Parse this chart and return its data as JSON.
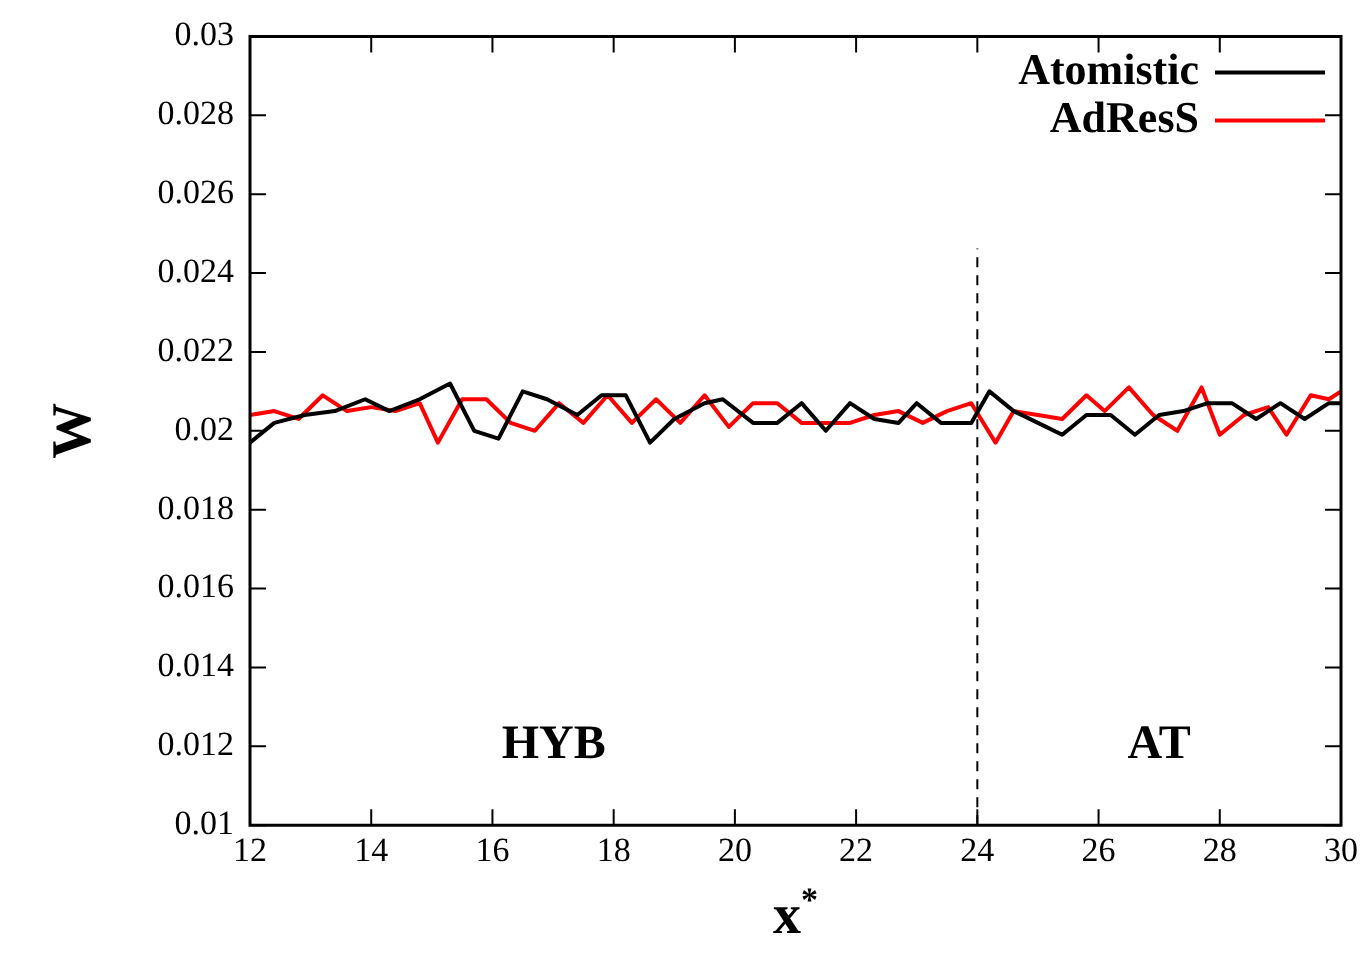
{
  "chart_data": {
    "type": "line",
    "xlabel": "x$^{*}$",
    "ylabel": "W",
    "xlim": [
      12,
      30
    ],
    "xticks": [
      12,
      14,
      16,
      18,
      20,
      22,
      24,
      26,
      28,
      30
    ],
    "ylim": [
      0.01,
      0.03
    ],
    "yticks": [
      0.01,
      0.012,
      0.014,
      0.016,
      0.018,
      0.02,
      0.022,
      0.024,
      0.026,
      0.028,
      0.03
    ],
    "grid": false,
    "legend": "top right",
    "marker": "none",
    "line_style": "solid",
    "ref_lines": [
      {
        "axis": "x",
        "value": 24,
        "color": "#000000",
        "line_style": "dashed"
      }
    ],
    "annotations": [
      "HYB",
      "AT"
    ],
    "series": [
      {
        "name": "Atomistic",
        "color": "#000000",
        "x": [
          12.0,
          12.4,
          12.9,
          13.4,
          13.9,
          14.3,
          14.8,
          15.3,
          15.7,
          16.1,
          16.5,
          16.9,
          17.4,
          17.8,
          18.2,
          18.6,
          19.0,
          19.5,
          19.8,
          20.3,
          20.7,
          21.1,
          21.5,
          21.9,
          22.3,
          22.7,
          23.0,
          23.4,
          23.9,
          24.2,
          24.6,
          25.0,
          25.4,
          25.8,
          26.2,
          26.6,
          27.0,
          27.4,
          27.8,
          28.2,
          28.6,
          29.0,
          29.4,
          29.8,
          30.0
        ],
        "values": [
          0.0197,
          0.0202,
          0.0204,
          0.0205,
          0.0208,
          0.0205,
          0.0208,
          0.0212,
          0.02,
          0.0198,
          0.021,
          0.0208,
          0.0204,
          0.0209,
          0.0209,
          0.0197,
          0.0203,
          0.0207,
          0.0208,
          0.0202,
          0.0202,
          0.0207,
          0.02,
          0.0207,
          0.0203,
          0.0202,
          0.0207,
          0.0202,
          0.0202,
          0.021,
          0.0205,
          0.0202,
          0.0199,
          0.0204,
          0.0204,
          0.0199,
          0.0204,
          0.0205,
          0.0207,
          0.0207,
          0.0203,
          0.0207,
          0.0203,
          0.0207,
          0.0207
        ]
      },
      {
        "name": "AdResS",
        "color": "#ff0000",
        "x": [
          12.0,
          12.4,
          12.8,
          13.2,
          13.6,
          14.0,
          14.4,
          14.8,
          15.1,
          15.5,
          15.9,
          16.3,
          16.7,
          17.1,
          17.5,
          17.9,
          18.3,
          18.7,
          19.1,
          19.5,
          19.9,
          20.3,
          20.7,
          21.1,
          21.5,
          21.9,
          22.3,
          22.7,
          23.1,
          23.5,
          23.9,
          24.3,
          24.6,
          25.0,
          25.4,
          25.8,
          26.1,
          26.5,
          26.9,
          27.3,
          27.7,
          28.0,
          28.4,
          28.8,
          29.1,
          29.5,
          29.8,
          30.0
        ],
        "values": [
          0.0204,
          0.0205,
          0.0203,
          0.0209,
          0.0205,
          0.0206,
          0.0205,
          0.0207,
          0.0197,
          0.0208,
          0.0208,
          0.0202,
          0.02,
          0.0207,
          0.0202,
          0.0209,
          0.0202,
          0.0208,
          0.0202,
          0.0209,
          0.0201,
          0.0207,
          0.0207,
          0.0202,
          0.0202,
          0.0202,
          0.0204,
          0.0205,
          0.0202,
          0.0205,
          0.0207,
          0.0197,
          0.0205,
          0.0204,
          0.0203,
          0.0209,
          0.0205,
          0.0211,
          0.0204,
          0.02,
          0.0211,
          0.0199,
          0.0204,
          0.0206,
          0.0199,
          0.0209,
          0.0208,
          0.021
        ]
      }
    ]
  }
}
